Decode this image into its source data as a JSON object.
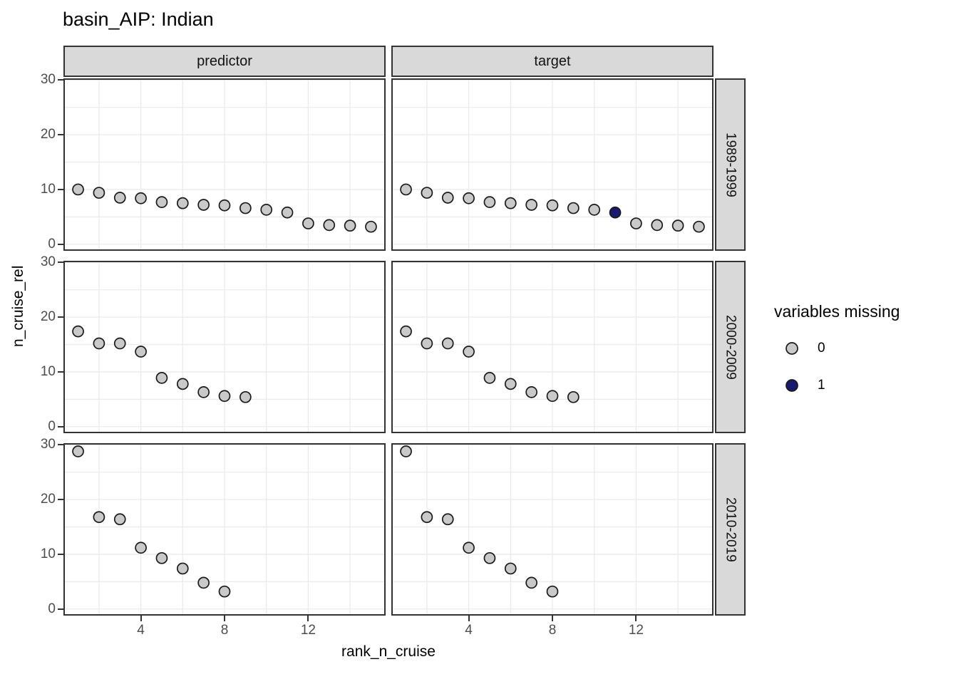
{
  "title": "basin_AIP: Indian",
  "colors": {
    "point_fill_0": "#c9c9c9",
    "point_fill_1": "#191970",
    "point_stroke": "#1a1a1a",
    "strip_bg": "#d9d9d9",
    "strip_border": "#333333",
    "panel_border": "#333333",
    "panel_bg": "#ffffff",
    "grid": "#ebebeb",
    "tick_label": "#4d4d4d"
  },
  "legend": {
    "title": "variables missing",
    "entries": [
      {
        "label": "0",
        "fill": "#c9c9c9"
      },
      {
        "label": "1",
        "fill": "#191970"
      }
    ]
  },
  "chart_data": {
    "type": "scatter",
    "title": "basin_AIP: Indian",
    "xlabel": "rank_n_cruise",
    "ylabel": "n_cruise_rel",
    "facet_columns": [
      "predictor",
      "target"
    ],
    "facet_rows": [
      "1989-1999",
      "2000-2009",
      "2010-2019"
    ],
    "xlim": [
      0.3,
      15.7
    ],
    "ylim": [
      -1.2,
      30.3
    ],
    "x_ticks": [
      4,
      8,
      12
    ],
    "y_ticks": [
      0,
      10,
      20,
      30
    ],
    "grid_x": [
      2,
      4,
      6,
      8,
      10,
      12,
      14
    ],
    "grid_y": [
      0,
      5,
      10,
      15,
      20,
      25,
      30
    ],
    "legend_title": "variables missing",
    "legend_position": "right",
    "panels": [
      {
        "row": "1989-1999",
        "col": "predictor",
        "x": [
          1,
          2,
          3,
          4,
          5,
          6,
          7,
          8,
          9,
          10,
          11,
          12,
          13,
          14,
          15
        ],
        "y": [
          10.0,
          9.4,
          8.5,
          8.4,
          7.7,
          7.5,
          7.2,
          7.1,
          6.6,
          6.3,
          5.8,
          3.8,
          3.5,
          3.4,
          3.2
        ],
        "missing": [
          0,
          0,
          0,
          0,
          0,
          0,
          0,
          0,
          0,
          0,
          0,
          0,
          0,
          0,
          0
        ]
      },
      {
        "row": "1989-1999",
        "col": "target",
        "x": [
          1,
          2,
          3,
          4,
          5,
          6,
          7,
          8,
          9,
          10,
          11,
          12,
          13,
          14,
          15
        ],
        "y": [
          10.0,
          9.4,
          8.5,
          8.4,
          7.7,
          7.5,
          7.2,
          7.1,
          6.6,
          6.3,
          5.8,
          3.8,
          3.5,
          3.4,
          3.2
        ],
        "missing": [
          0,
          0,
          0,
          0,
          0,
          0,
          0,
          0,
          0,
          0,
          1,
          0,
          0,
          0,
          0
        ]
      },
      {
        "row": "2000-2009",
        "col": "predictor",
        "x": [
          1,
          2,
          3,
          4,
          5,
          6,
          7,
          8,
          9
        ],
        "y": [
          17.4,
          15.2,
          15.2,
          13.7,
          8.9,
          7.8,
          6.3,
          5.6,
          5.4
        ],
        "missing": [
          0,
          0,
          0,
          0,
          0,
          0,
          0,
          0,
          0
        ]
      },
      {
        "row": "2000-2009",
        "col": "target",
        "x": [
          1,
          2,
          3,
          4,
          5,
          6,
          7,
          8,
          9
        ],
        "y": [
          17.4,
          15.2,
          15.2,
          13.7,
          8.9,
          7.8,
          6.3,
          5.6,
          5.4
        ],
        "missing": [
          0,
          0,
          0,
          0,
          0,
          0,
          0,
          0,
          0
        ]
      },
      {
        "row": "2010-2019",
        "col": "predictor",
        "x": [
          1,
          2,
          3,
          4,
          5,
          6,
          7,
          8
        ],
        "y": [
          28.8,
          16.8,
          16.4,
          11.2,
          9.3,
          7.4,
          4.8,
          3.2
        ],
        "missing": [
          0,
          0,
          0,
          0,
          0,
          0,
          0,
          0
        ]
      },
      {
        "row": "2010-2019",
        "col": "target",
        "x": [
          1,
          2,
          3,
          4,
          5,
          6,
          7,
          8
        ],
        "y": [
          28.8,
          16.8,
          16.4,
          11.2,
          9.3,
          7.4,
          4.8,
          3.2
        ],
        "missing": [
          0,
          0,
          0,
          0,
          0,
          0,
          0,
          0
        ]
      }
    ]
  }
}
